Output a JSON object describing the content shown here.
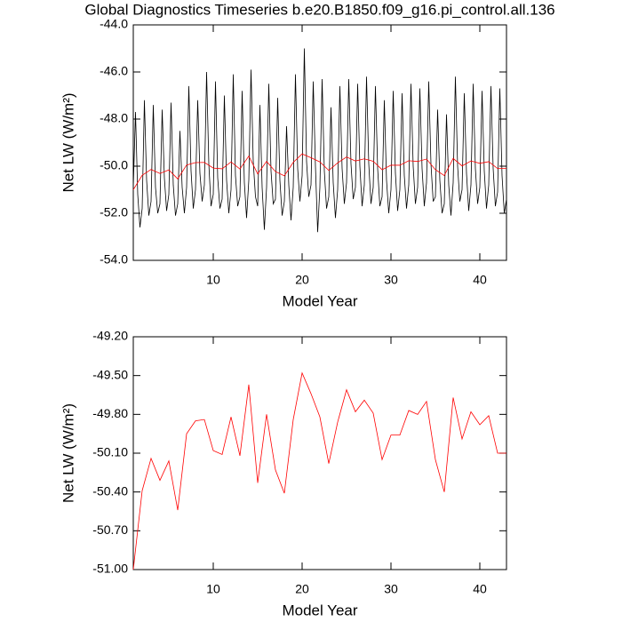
{
  "chart_data": [
    {
      "type": "line",
      "title": "Global Diagnostics Timeseries b.e20.B1850.f09_g16.pi_control.all.136",
      "xlabel": "Model Year",
      "ylabel": "Net LW (W/m²)",
      "xlim": [
        1,
        43
      ],
      "xticks": [
        10,
        20,
        30,
        40
      ],
      "ylim": [
        -54,
        -44
      ],
      "yticks": [
        {
          "value": -54,
          "label": "-54.0"
        },
        {
          "value": -52,
          "label": "-52.0"
        },
        {
          "value": -50,
          "label": "-50.0"
        },
        {
          "value": -48,
          "label": "-48.0"
        },
        {
          "value": -46,
          "label": "-46.0"
        },
        {
          "value": -44,
          "label": "-44.0"
        }
      ],
      "series": [
        {
          "color": "#000000",
          "x": [
            1,
            1.25,
            1.5,
            1.75,
            2,
            2.25,
            2.5,
            2.75,
            3,
            3.25,
            3.5,
            3.75,
            4,
            4.25,
            4.5,
            4.75,
            5,
            5.25,
            5.5,
            5.75,
            6,
            6.25,
            6.5,
            6.75,
            7,
            7.25,
            7.5,
            7.75,
            8,
            8.25,
            8.5,
            8.75,
            9,
            9.25,
            9.5,
            9.75,
            10,
            10.25,
            10.5,
            10.75,
            11,
            11.25,
            11.5,
            11.75,
            12,
            12.25,
            12.5,
            12.75,
            13,
            13.25,
            13.5,
            13.75,
            14,
            14.25,
            14.5,
            14.75,
            15,
            15.25,
            15.5,
            15.75,
            16,
            16.25,
            16.5,
            16.75,
            17,
            17.25,
            17.5,
            17.75,
            18,
            18.25,
            18.5,
            18.75,
            19,
            19.25,
            19.5,
            19.75,
            20,
            20.25,
            20.5,
            20.75,
            21,
            21.25,
            21.5,
            21.75,
            22,
            22.25,
            22.5,
            22.75,
            23,
            23.25,
            23.5,
            23.75,
            24,
            24.25,
            24.5,
            24.75,
            25,
            25.25,
            25.5,
            25.75,
            26,
            26.25,
            26.5,
            26.75,
            27,
            27.25,
            27.5,
            27.75,
            28,
            28.25,
            28.5,
            28.75,
            29,
            29.25,
            29.5,
            29.75,
            30,
            30.25,
            30.5,
            30.75,
            31,
            31.25,
            31.5,
            31.75,
            32,
            32.25,
            32.5,
            32.75,
            33,
            33.25,
            33.5,
            33.75,
            34,
            34.25,
            34.5,
            34.75,
            35,
            35.25,
            35.5,
            35.75,
            36,
            36.25,
            36.5,
            36.75,
            37,
            37.25,
            37.5,
            37.75,
            38,
            38.25,
            38.5,
            38.75,
            39,
            39.25,
            39.5,
            39.75,
            40,
            40.25,
            40.5,
            40.75,
            41,
            41.25,
            41.5,
            41.75,
            42,
            42.25,
            42.5,
            42.75,
            43
          ],
          "values": [
            -50.9,
            -47.7,
            -51.2,
            -52.6,
            -51.8,
            -47.2,
            -50.6,
            -52.1,
            -51.5,
            -47.4,
            -50.9,
            -52.0,
            -51.6,
            -47.6,
            -50.5,
            -51.9,
            -51.2,
            -47.3,
            -50.8,
            -52.1,
            -51.6,
            -48.5,
            -50.9,
            -52.0,
            -50.9,
            -46.6,
            -50.2,
            -51.8,
            -51.0,
            -47.2,
            -50.3,
            -51.5,
            -50.8,
            -46.0,
            -49.9,
            -51.7,
            -51.2,
            -46.4,
            -50.5,
            -51.8,
            -51.4,
            -47.0,
            -50.6,
            -52.0,
            -51.0,
            -46.1,
            -50.4,
            -51.7,
            -51.3,
            -46.8,
            -50.7,
            -52.2,
            -50.6,
            -45.9,
            -49.8,
            -51.3,
            -51.7,
            -47.4,
            -50.9,
            -52.7,
            -50.9,
            -46.5,
            -50.2,
            -51.6,
            -51.4,
            -47.1,
            -50.6,
            -52.1,
            -51.5,
            -48.3,
            -50.8,
            -52.3,
            -50.9,
            -46.1,
            -50.1,
            -51.5,
            -50.4,
            -45.0,
            -49.8,
            -51.3,
            -50.8,
            -46.4,
            -50.0,
            -52.8,
            -50.9,
            -46.3,
            -50.2,
            -51.8,
            -51.3,
            -47.5,
            -50.7,
            -52.2,
            -51.0,
            -46.6,
            -50.1,
            -51.6,
            -50.7,
            -46.3,
            -49.9,
            -51.4,
            -50.9,
            -46.5,
            -50.0,
            -51.7,
            -50.8,
            -46.2,
            -49.9,
            -51.6,
            -50.9,
            -46.6,
            -50.1,
            -51.7,
            -51.3,
            -47.2,
            -50.6,
            -52.0,
            -51.0,
            -46.8,
            -50.3,
            -51.9,
            -51.0,
            -46.9,
            -50.4,
            -51.8,
            -50.8,
            -46.5,
            -50.0,
            -51.6,
            -50.9,
            -46.7,
            -50.1,
            -51.7,
            -50.7,
            -46.4,
            -49.9,
            -51.5,
            -51.3,
            -47.6,
            -50.6,
            -52.0,
            -51.6,
            -47.8,
            -50.8,
            -52.1,
            -50.7,
            -46.2,
            -50.0,
            -51.5,
            -51.0,
            -46.9,
            -50.3,
            -51.9,
            -50.8,
            -46.5,
            -50.1,
            -51.6,
            -50.9,
            -46.8,
            -50.2,
            -51.8,
            -50.8,
            -46.6,
            -50.1,
            -51.7,
            -51.1,
            -46.7,
            -50.4,
            -52.0,
            -51.4
          ]
        },
        {
          "color": "#ff0000",
          "x": [
            1,
            2,
            3,
            4,
            5,
            6,
            7,
            8,
            9,
            10,
            11,
            12,
            13,
            14,
            15,
            16,
            17,
            18,
            19,
            20,
            21,
            22,
            23,
            24,
            25,
            26,
            27,
            28,
            29,
            30,
            31,
            32,
            33,
            34,
            35,
            36,
            37,
            38,
            39,
            40,
            41,
            42,
            43
          ],
          "values": [
            -51.0,
            -50.39,
            -50.14,
            -50.31,
            -50.16,
            -50.54,
            -49.95,
            -49.85,
            -49.84,
            -50.08,
            -50.11,
            -49.82,
            -50.12,
            -49.57,
            -50.33,
            -49.8,
            -50.23,
            -50.41,
            -49.84,
            -49.48,
            -49.64,
            -49.82,
            -50.18,
            -49.86,
            -49.61,
            -49.78,
            -49.69,
            -49.79,
            -50.15,
            -49.96,
            -49.96,
            -49.77,
            -49.8,
            -49.7,
            -50.15,
            -50.4,
            -49.67,
            -49.99,
            -49.78,
            -49.88,
            -49.81,
            -50.1,
            -50.1
          ]
        }
      ]
    },
    {
      "type": "line",
      "xlabel": "Model Year",
      "ylabel": "Net LW (W/m²)",
      "xlim": [
        1,
        43
      ],
      "xticks": [
        10,
        20,
        30,
        40
      ],
      "ylim": [
        -51,
        -49.2
      ],
      "yticks": [
        {
          "value": -51,
          "label": "-51.00"
        },
        {
          "value": -50.7,
          "label": "-50.70"
        },
        {
          "value": -50.4,
          "label": "-50.40"
        },
        {
          "value": -50.1,
          "label": "-50.10"
        },
        {
          "value": -49.8,
          "label": "-49.80"
        },
        {
          "value": -49.5,
          "label": "-49.50"
        },
        {
          "value": -49.2,
          "label": "-49.20"
        }
      ],
      "series": [
        {
          "color": "#ff0000",
          "x": [
            1,
            2,
            3,
            4,
            5,
            6,
            7,
            8,
            9,
            10,
            11,
            12,
            13,
            14,
            15,
            16,
            17,
            18,
            19,
            20,
            21,
            22,
            23,
            24,
            25,
            26,
            27,
            28,
            29,
            30,
            31,
            32,
            33,
            34,
            35,
            36,
            37,
            38,
            39,
            40,
            41,
            42,
            43
          ],
          "values": [
            -51.0,
            -50.39,
            -50.14,
            -50.31,
            -50.16,
            -50.54,
            -49.95,
            -49.85,
            -49.84,
            -50.08,
            -50.11,
            -49.82,
            -50.12,
            -49.57,
            -50.33,
            -49.8,
            -50.23,
            -50.41,
            -49.84,
            -49.48,
            -49.64,
            -49.82,
            -50.18,
            -49.86,
            -49.61,
            -49.78,
            -49.69,
            -49.79,
            -50.15,
            -49.96,
            -49.96,
            -49.77,
            -49.8,
            -49.7,
            -50.15,
            -50.4,
            -49.67,
            -49.99,
            -49.78,
            -49.88,
            -49.81,
            -50.1,
            -50.1
          ]
        }
      ]
    }
  ]
}
